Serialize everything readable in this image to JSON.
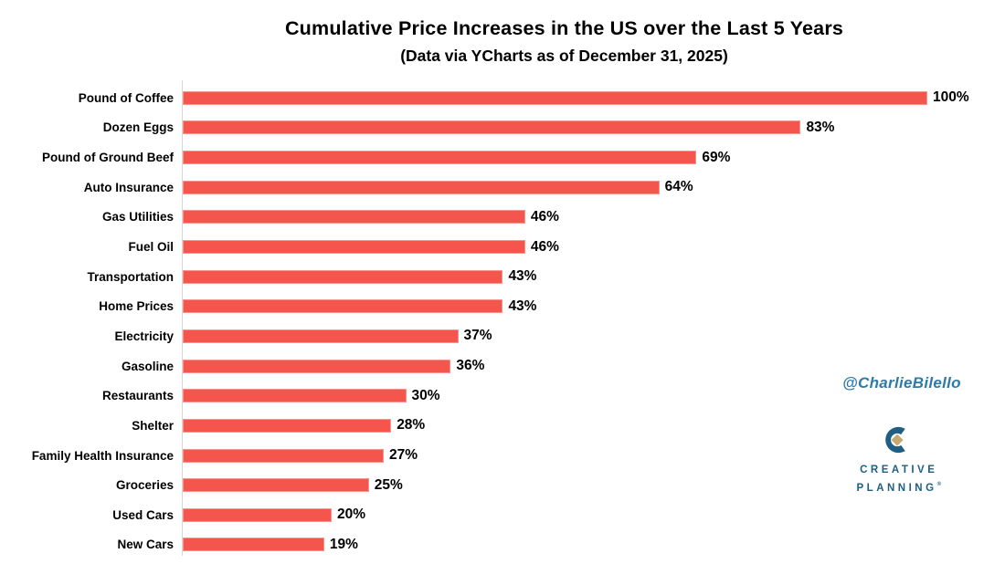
{
  "header": {
    "title": "Cumulative Price Increases in the US over the Last 5 Years",
    "subtitle": "(Data via YCharts as of December 31, 2025)"
  },
  "watermark": "@CharlieBilello",
  "logo": {
    "line1": "CREATIVE",
    "line2": "PLANNING",
    "mark": "®"
  },
  "colors": {
    "bar": "#F4564D",
    "bar_edge": "#F9938D",
    "axis": "#D6D6D6",
    "watermark": "#2E7BA8",
    "logo_blue": "#1F5F83",
    "logo_gold": "#C5A96F",
    "text": "#000000"
  },
  "chart_data": {
    "type": "bar",
    "orientation": "horizontal",
    "title": "Cumulative Price Increases in the US over the Last 5 Years",
    "subtitle": "(Data via YCharts as of December 31, 2025)",
    "categories": [
      "Pound of Coffee",
      "Dozen Eggs",
      "Pound of Ground Beef",
      "Auto Insurance",
      "Gas Utilities",
      "Fuel Oil",
      "Transportation",
      "Home Prices",
      "Electricity",
      "Gasoline",
      "Restaurants",
      "Shelter",
      "Family Health Insurance",
      "Groceries",
      "Used Cars",
      "New Cars"
    ],
    "values": [
      100,
      83,
      69,
      64,
      46,
      46,
      43,
      43,
      37,
      36,
      30,
      28,
      27,
      25,
      20,
      19
    ],
    "value_suffix": "%",
    "xlim": [
      0,
      100
    ],
    "grid": false,
    "legend": false,
    "data_labels": true,
    "bar_color": "#F4564D"
  }
}
